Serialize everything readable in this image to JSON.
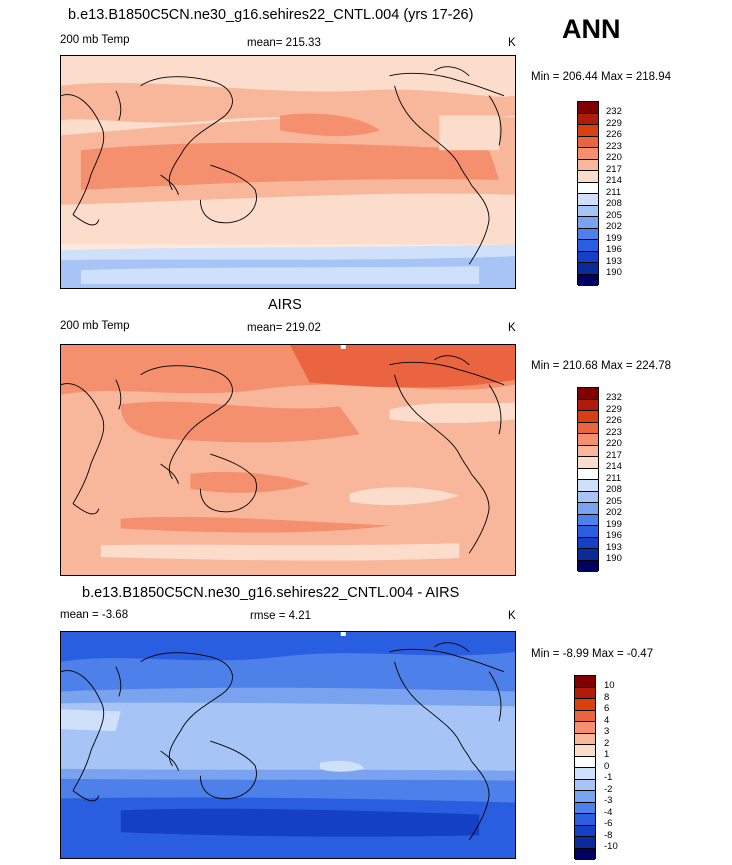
{
  "season": "ANN",
  "panels": [
    {
      "title": "b.e13.B1850C5CN.ne30_g16.sehires22_CNTL.004 (yrs 17-26)",
      "left_label": "200 mb Temp",
      "center_label": "mean= 215.33",
      "units": "K",
      "minmax": "Min = 206.44 Max = 218.94",
      "min": 206.44,
      "max": 218.94,
      "levels": [
        "232",
        "229",
        "226",
        "223",
        "220",
        "217",
        "214",
        "211",
        "208",
        "205",
        "202",
        "199",
        "196",
        "193",
        "190"
      ],
      "colors": [
        "#800000",
        "#b01c0c",
        "#d8400e",
        "#ea6440",
        "#f4906e",
        "#f8b79b",
        "#fcdccb",
        "#ffffff",
        "#cfe0fa",
        "#a6c4f5",
        "#7aa3ef",
        "#4d80e8",
        "#2a5ee0",
        "#1440c6",
        "#0c2a9a",
        "#000060"
      ]
    },
    {
      "title": "AIRS",
      "left_label": "200 mb Temp",
      "center_label": "mean= 219.02",
      "units": "K",
      "minmax": "Min = 210.68 Max = 224.78",
      "min": 210.68,
      "max": 224.78,
      "levels": [
        "232",
        "229",
        "226",
        "223",
        "220",
        "217",
        "214",
        "211",
        "208",
        "205",
        "202",
        "199",
        "196",
        "193",
        "190"
      ],
      "colors": [
        "#800000",
        "#b01c0c",
        "#d8400e",
        "#ea6440",
        "#f4906e",
        "#f8b79b",
        "#fcdccb",
        "#ffffff",
        "#cfe0fa",
        "#a6c4f5",
        "#7aa3ef",
        "#4d80e8",
        "#2a5ee0",
        "#1440c6",
        "#0c2a9a",
        "#000060"
      ]
    },
    {
      "title": "b.e13.B1850C5CN.ne30_g16.sehires22_CNTL.004 - AIRS",
      "left_label": "mean =  -3.68",
      "center_label": "rmse =   4.21",
      "units": "K",
      "minmax": "Min =  -8.99 Max =  -0.47",
      "min": -8.99,
      "max": -0.47,
      "levels": [
        "10",
        "8",
        "6",
        "4",
        "3",
        "2",
        "1",
        "0",
        "-1",
        "-2",
        "-3",
        "-4",
        "-6",
        "-8",
        "-10"
      ],
      "colors": [
        "#800000",
        "#b01c0c",
        "#d8400e",
        "#ea6440",
        "#f4906e",
        "#f8b79b",
        "#fcdccb",
        "#ffffff",
        "#cfe0fa",
        "#a6c4f5",
        "#7aa3ef",
        "#4d80e8",
        "#2a5ee0",
        "#1440c6",
        "#0c2a9a",
        "#000060"
      ]
    }
  ]
}
